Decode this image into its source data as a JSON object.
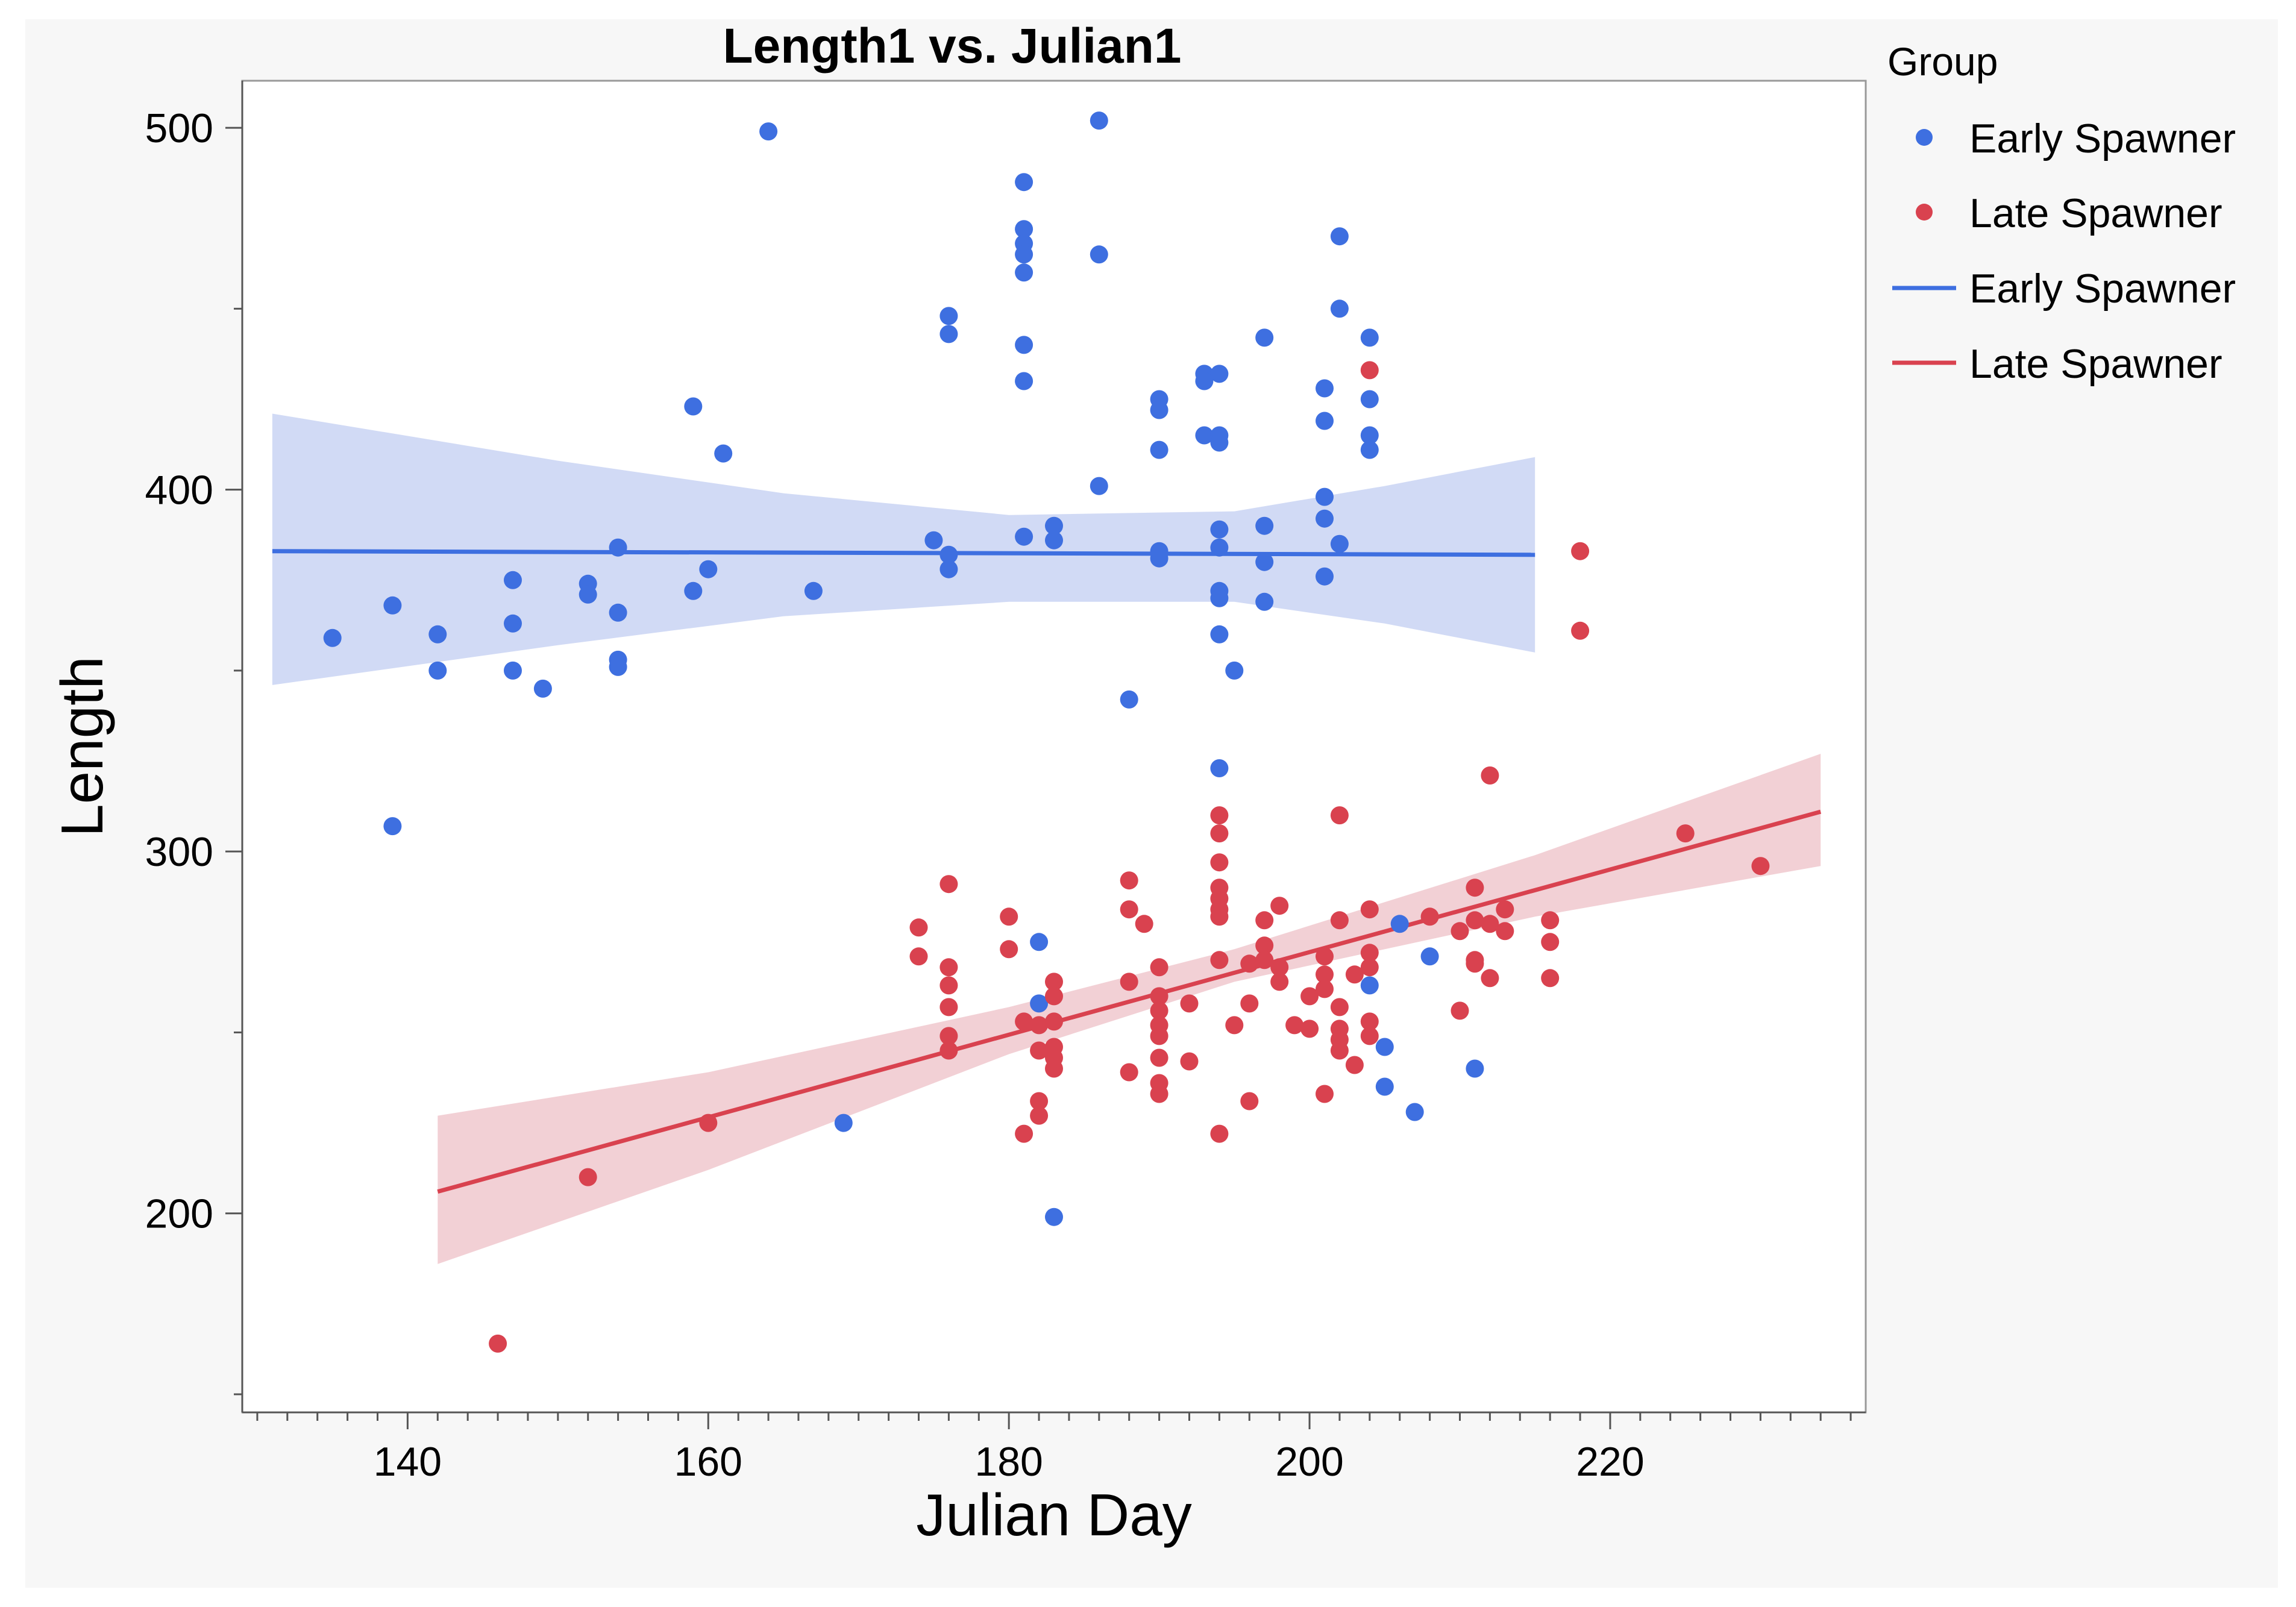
{
  "chart_data": {
    "type": "scatter",
    "title": "Length1 vs. Julian1",
    "xlabel": "Julian Day",
    "ylabel": "Length",
    "xlim": [
      129,
      237
    ],
    "ylim": [
      145,
      513
    ],
    "xticks": [
      140,
      160,
      180,
      200,
      220
    ],
    "yticks": [
      200,
      300,
      400,
      500
    ],
    "legend": {
      "title": "Group",
      "position": "right",
      "entries": [
        {
          "label": "Early Spawner",
          "kind": "marker",
          "color": "#3e6fe0"
        },
        {
          "label": "Late Spawner",
          "kind": "marker",
          "color": "#d9424f"
        },
        {
          "label": "Early Spawner",
          "kind": "line",
          "color": "#3e6fe0"
        },
        {
          "label": "Late Spawner",
          "kind": "line",
          "color": "#d9424f"
        }
      ]
    },
    "series": [
      {
        "name": "Early Spawner",
        "color": "#3e6fe0",
        "band_color": "#ccd6f4",
        "points": [
          [
            135,
            359
          ],
          [
            139,
            368
          ],
          [
            139,
            307
          ],
          [
            142,
            360
          ],
          [
            142,
            350
          ],
          [
            147,
            375
          ],
          [
            147,
            363
          ],
          [
            147,
            350
          ],
          [
            149,
            345
          ],
          [
            152,
            374
          ],
          [
            152,
            371
          ],
          [
            154,
            384
          ],
          [
            154,
            366
          ],
          [
            154,
            353
          ],
          [
            154,
            351
          ],
          [
            159,
            423
          ],
          [
            159,
            372
          ],
          [
            160,
            378
          ],
          [
            161,
            410
          ],
          [
            164,
            499
          ],
          [
            167,
            372
          ],
          [
            169,
            225
          ],
          [
            175,
            386
          ],
          [
            176,
            448
          ],
          [
            176,
            443
          ],
          [
            176,
            382
          ],
          [
            176,
            378
          ],
          [
            181,
            485
          ],
          [
            181,
            472
          ],
          [
            181,
            468
          ],
          [
            181,
            465
          ],
          [
            181,
            460
          ],
          [
            181,
            440
          ],
          [
            181,
            430
          ],
          [
            181,
            387
          ],
          [
            182,
            275
          ],
          [
            182,
            258
          ],
          [
            183,
            390
          ],
          [
            183,
            386
          ],
          [
            183,
            199
          ],
          [
            186,
            502
          ],
          [
            186,
            465
          ],
          [
            186,
            401
          ],
          [
            188,
            342
          ],
          [
            190,
            425
          ],
          [
            190,
            422
          ],
          [
            190,
            411
          ],
          [
            190,
            383
          ],
          [
            190,
            381
          ],
          [
            193,
            432
          ],
          [
            193,
            430
          ],
          [
            193,
            415
          ],
          [
            194,
            432
          ],
          [
            194,
            415
          ],
          [
            194,
            413
          ],
          [
            194,
            389
          ],
          [
            194,
            384
          ],
          [
            194,
            372
          ],
          [
            194,
            370
          ],
          [
            194,
            360
          ],
          [
            194,
            323
          ],
          [
            195,
            350
          ],
          [
            197,
            442
          ],
          [
            197,
            390
          ],
          [
            197,
            380
          ],
          [
            197,
            369
          ],
          [
            201,
            428
          ],
          [
            201,
            419
          ],
          [
            201,
            398
          ],
          [
            201,
            392
          ],
          [
            201,
            376
          ],
          [
            202,
            470
          ],
          [
            202,
            450
          ],
          [
            202,
            385
          ],
          [
            204,
            442
          ],
          [
            204,
            425
          ],
          [
            204,
            415
          ],
          [
            204,
            411
          ],
          [
            204,
            263
          ],
          [
            205,
            246
          ],
          [
            205,
            235
          ],
          [
            206,
            280
          ],
          [
            207,
            228
          ],
          [
            208,
            271
          ],
          [
            211,
            240
          ]
        ],
        "fit": {
          "x": [
            131,
            215
          ],
          "y": [
            383,
            382
          ]
        },
        "ci_band": {
          "x": [
            131,
            150,
            165,
            180,
            195,
            205,
            215
          ],
          "lower": [
            346,
            357,
            365,
            369,
            369,
            363,
            355
          ],
          "upper": [
            421,
            408,
            399,
            393,
            394,
            401,
            409
          ]
        }
      },
      {
        "name": "Late Spawner",
        "color": "#d9424f",
        "band_color": "#f1cbd0",
        "points": [
          [
            146,
            164
          ],
          [
            152,
            210
          ],
          [
            160,
            225
          ],
          [
            174,
            279
          ],
          [
            174,
            271
          ],
          [
            176,
            291
          ],
          [
            176,
            268
          ],
          [
            176,
            263
          ],
          [
            176,
            257
          ],
          [
            176,
            249
          ],
          [
            176,
            245
          ],
          [
            180,
            282
          ],
          [
            180,
            273
          ],
          [
            181,
            253
          ],
          [
            181,
            222
          ],
          [
            182,
            252
          ],
          [
            182,
            245
          ],
          [
            182,
            231
          ],
          [
            182,
            227
          ],
          [
            183,
            264
          ],
          [
            183,
            260
          ],
          [
            183,
            253
          ],
          [
            183,
            246
          ],
          [
            183,
            243
          ],
          [
            183,
            240
          ],
          [
            188,
            292
          ],
          [
            188,
            284
          ],
          [
            188,
            264
          ],
          [
            188,
            239
          ],
          [
            189,
            280
          ],
          [
            190,
            268
          ],
          [
            190,
            260
          ],
          [
            190,
            256
          ],
          [
            190,
            252
          ],
          [
            190,
            249
          ],
          [
            190,
            243
          ],
          [
            190,
            236
          ],
          [
            190,
            233
          ],
          [
            192,
            258
          ],
          [
            192,
            242
          ],
          [
            194,
            310
          ],
          [
            194,
            305
          ],
          [
            194,
            297
          ],
          [
            194,
            290
          ],
          [
            194,
            287
          ],
          [
            194,
            284
          ],
          [
            194,
            282
          ],
          [
            194,
            270
          ],
          [
            194,
            222
          ],
          [
            195,
            252
          ],
          [
            196,
            269
          ],
          [
            196,
            258
          ],
          [
            196,
            231
          ],
          [
            197,
            281
          ],
          [
            197,
            274
          ],
          [
            197,
            270
          ],
          [
            198,
            285
          ],
          [
            198,
            268
          ],
          [
            198,
            264
          ],
          [
            199,
            252
          ],
          [
            200,
            260
          ],
          [
            200,
            251
          ],
          [
            201,
            271
          ],
          [
            201,
            266
          ],
          [
            201,
            262
          ],
          [
            201,
            233
          ],
          [
            202,
            310
          ],
          [
            202,
            281
          ],
          [
            202,
            257
          ],
          [
            202,
            251
          ],
          [
            202,
            248
          ],
          [
            202,
            245
          ],
          [
            203,
            266
          ],
          [
            203,
            241
          ],
          [
            204,
            284
          ],
          [
            204,
            272
          ],
          [
            204,
            268
          ],
          [
            204,
            253
          ],
          [
            204,
            249
          ],
          [
            204,
            433
          ],
          [
            208,
            282
          ],
          [
            210,
            278
          ],
          [
            210,
            256
          ],
          [
            211,
            290
          ],
          [
            211,
            281
          ],
          [
            211,
            270
          ],
          [
            211,
            269
          ],
          [
            212,
            321
          ],
          [
            212,
            280
          ],
          [
            212,
            265
          ],
          [
            213,
            284
          ],
          [
            213,
            278
          ],
          [
            216,
            281
          ],
          [
            216,
            275
          ],
          [
            216,
            265
          ],
          [
            218,
            383
          ],
          [
            218,
            361
          ],
          [
            225,
            305
          ],
          [
            230,
            296
          ]
        ],
        "fit": {
          "x": [
            142,
            234
          ],
          "y": [
            206,
            311
          ]
        },
        "ci_band": {
          "x": [
            142,
            160,
            180,
            195,
            215,
            234
          ],
          "lower": [
            186,
            212,
            244,
            264,
            282,
            296
          ],
          "upper": [
            227,
            239,
            257,
            273,
            299,
            327
          ]
        }
      }
    ]
  }
}
